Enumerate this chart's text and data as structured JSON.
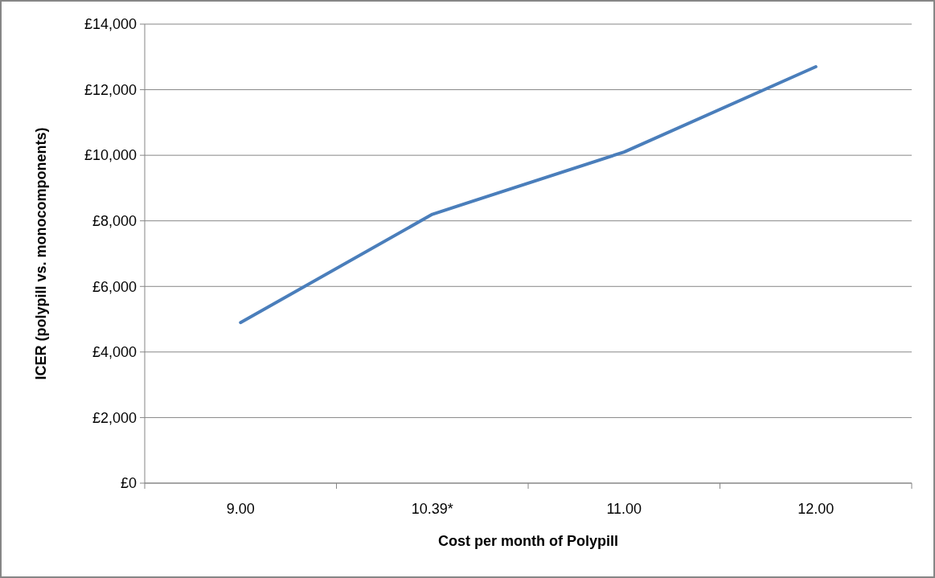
{
  "chart_data": {
    "type": "line",
    "xlabel": "Cost per month of Polypill",
    "ylabel": "ICER (polypill vs. monocomponents)",
    "categories": [
      "9.00",
      "10.39*",
      "11.00",
      "12.00"
    ],
    "series": [
      {
        "color": "#4a7ebb",
        "values": [
          4900,
          8200,
          10100,
          12700
        ]
      }
    ],
    "ylim": [
      0,
      14000
    ],
    "yticks": [
      {
        "value": 0,
        "label": "£0"
      },
      {
        "value": 2000,
        "label": "£2,000"
      },
      {
        "value": 4000,
        "label": "£4,000"
      },
      {
        "value": 6000,
        "label": "£6,000"
      },
      {
        "value": 8000,
        "label": "£8,000"
      },
      {
        "value": 10000,
        "label": "£10,000"
      },
      {
        "value": 12000,
        "label": "£12,000"
      },
      {
        "value": 14000,
        "label": "£14,000"
      }
    ],
    "grid": "y",
    "marker": "none",
    "line_style": "solid"
  }
}
